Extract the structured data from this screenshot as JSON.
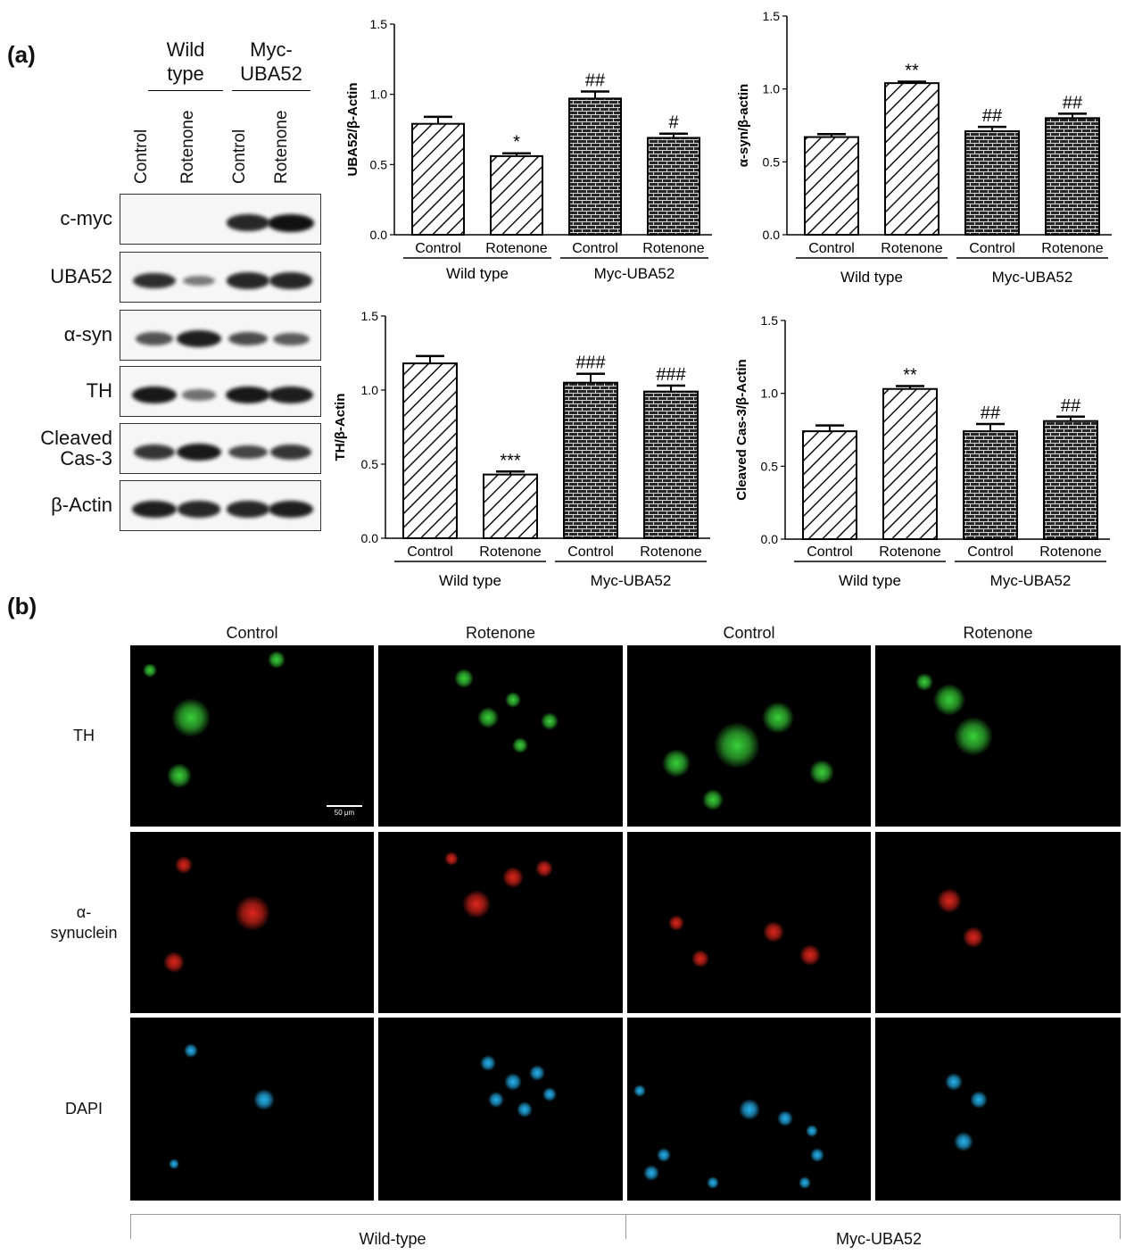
{
  "panel_a_label": "(a)",
  "panel_b_label": "(b)",
  "blot": {
    "groups": [
      "Wild\ntype",
      "Myc-\nUBA52"
    ],
    "lanes": [
      "Control",
      "Rotenone",
      "Control",
      "Rotenone"
    ],
    "rows": [
      {
        "name": "c-myc",
        "bands": [
          0.0,
          0.0,
          0.85,
          1.0
        ]
      },
      {
        "name": "UBA52",
        "bands": [
          0.8,
          0.3,
          0.85,
          0.85
        ]
      },
      {
        "name": "α-syn",
        "bands": [
          0.55,
          0.9,
          0.6,
          0.5
        ]
      },
      {
        "name": "TH",
        "bands": [
          0.95,
          0.35,
          0.95,
          0.9
        ]
      },
      {
        "name": "Cleaved\nCas-3",
        "bands": [
          0.75,
          0.95,
          0.65,
          0.75
        ]
      },
      {
        "name": "β-Actin",
        "bands": [
          0.9,
          0.85,
          0.85,
          0.9
        ]
      }
    ]
  },
  "chart_data": [
    {
      "type": "bar",
      "ylabel": "UBA52/β-Actin",
      "ylim": [
        0,
        1.5
      ],
      "yticks": [
        "0.0",
        "0.5",
        "1.0",
        "1.5"
      ],
      "categories": [
        "Control",
        "Rotenone",
        "Control",
        "Rotenone"
      ],
      "groups": [
        "Wild type",
        "Myc-UBA52"
      ],
      "values": [
        0.79,
        0.56,
        0.97,
        0.69
      ],
      "errors": [
        0.05,
        0.02,
        0.05,
        0.03
      ],
      "significance": [
        "",
        "*",
        "##",
        "#"
      ]
    },
    {
      "type": "bar",
      "ylabel": "α-syn/β-actin",
      "ylim": [
        0,
        1.5
      ],
      "yticks": [
        "0.0",
        "0.5",
        "1.0",
        "1.5"
      ],
      "categories": [
        "Control",
        "Rotenone",
        "Control",
        "Rotenone"
      ],
      "groups": [
        "Wild type",
        "Myc-UBA52"
      ],
      "values": [
        0.67,
        1.04,
        0.71,
        0.8
      ],
      "errors": [
        0.02,
        0.01,
        0.03,
        0.03
      ],
      "significance": [
        "",
        "**",
        "##",
        "##"
      ]
    },
    {
      "type": "bar",
      "ylabel": "TH/β-Actin",
      "ylim": [
        0,
        1.5
      ],
      "yticks": [
        "0.0",
        "0.5",
        "1.0",
        "1.5"
      ],
      "categories": [
        "Control",
        "Rotenone",
        "Control",
        "Rotenone"
      ],
      "groups": [
        "Wild type",
        "Myc-UBA52"
      ],
      "values": [
        1.18,
        0.43,
        1.05,
        0.99
      ],
      "errors": [
        0.05,
        0.02,
        0.06,
        0.04
      ],
      "significance": [
        "",
        "***",
        "###",
        "###"
      ]
    },
    {
      "type": "bar",
      "ylabel": "Cleaved Cas-3/β-Actin",
      "ylim": [
        0,
        1.5
      ],
      "yticks": [
        "0.0",
        "0.5",
        "1.0",
        "1.5"
      ],
      "categories": [
        "Control",
        "Rotenone",
        "Control",
        "Rotenone"
      ],
      "groups": [
        "Wild type",
        "Myc-UBA52"
      ],
      "values": [
        0.74,
        1.03,
        0.74,
        0.81
      ],
      "errors": [
        0.04,
        0.02,
        0.05,
        0.03
      ],
      "significance": [
        "",
        "**",
        "##",
        "##"
      ]
    }
  ],
  "micro": {
    "columns": [
      "Control",
      "Rotenone",
      "Control",
      "Rotenone"
    ],
    "rows": [
      "TH",
      "α-\nsynuclein",
      "DAPI"
    ],
    "row_colors": [
      "#2fb52f",
      "#c8241c",
      "#1fa6ee"
    ],
    "scale_bar": "50 μm",
    "groups": [
      "Wild-type",
      "Myc-UBA52"
    ]
  }
}
